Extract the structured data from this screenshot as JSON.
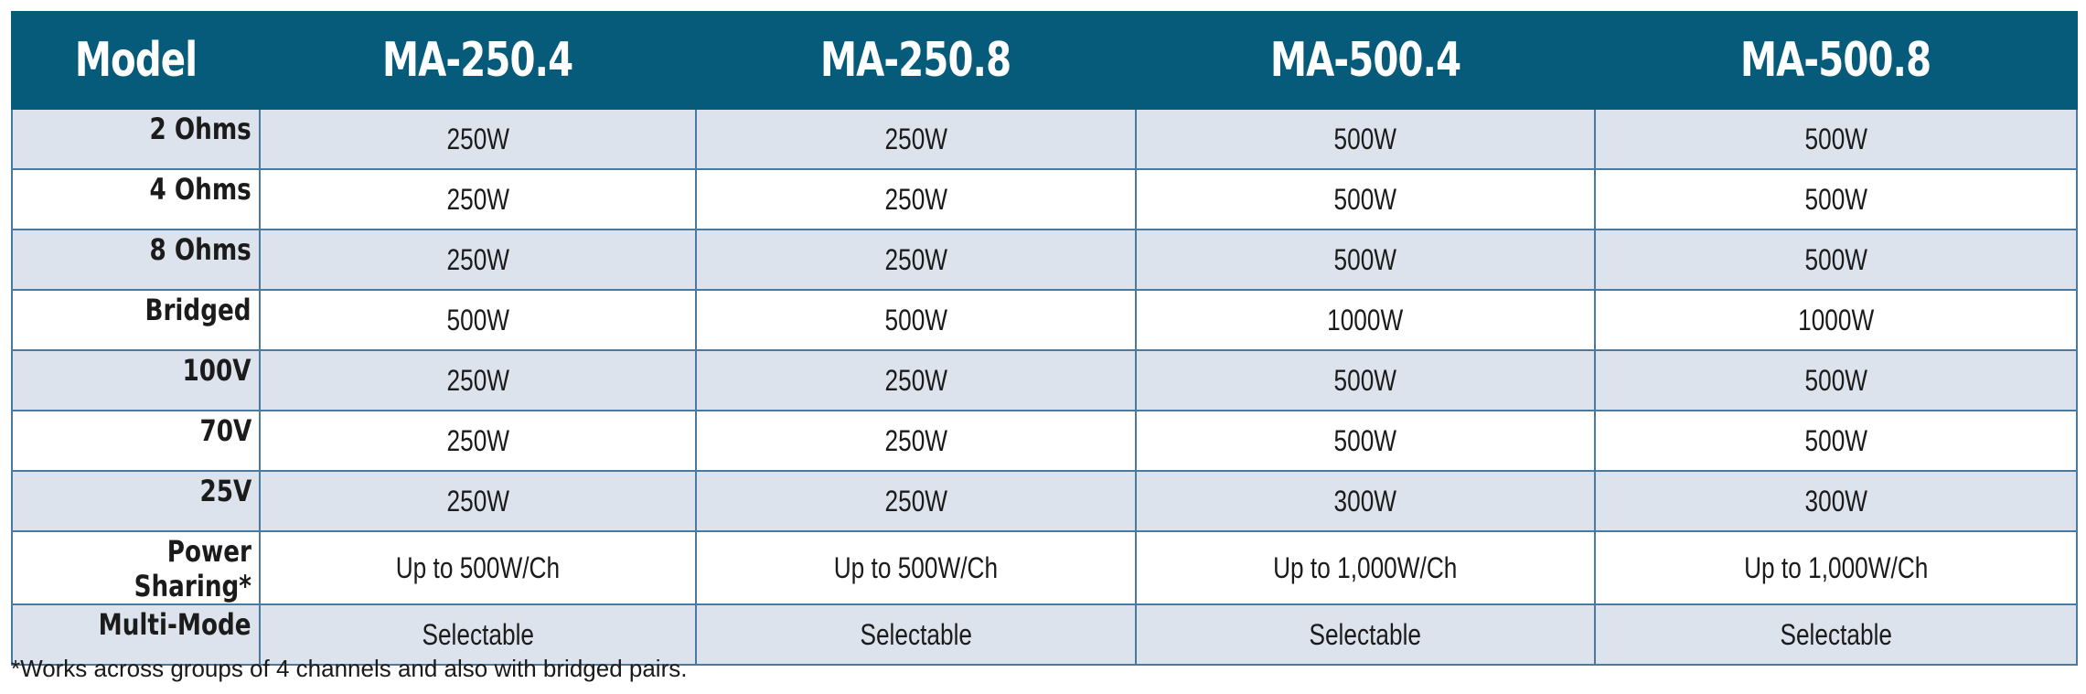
{
  "table": {
    "header": [
      "Model",
      "MA-250.4",
      "MA-250.8",
      "MA-500.4",
      "MA-500.8"
    ],
    "rows": [
      {
        "label": "2 Ohms",
        "values": [
          "250W",
          "250W",
          "500W",
          "500W"
        ]
      },
      {
        "label": "4 Ohms",
        "values": [
          "250W",
          "250W",
          "500W",
          "500W"
        ]
      },
      {
        "label": "8 Ohms",
        "values": [
          "250W",
          "250W",
          "500W",
          "500W"
        ]
      },
      {
        "label": "Bridged",
        "values": [
          "500W",
          "500W",
          "1000W",
          "1000W"
        ]
      },
      {
        "label": "100V",
        "values": [
          "250W",
          "250W",
          "500W",
          "500W"
        ]
      },
      {
        "label": "70V",
        "values": [
          "250W",
          "250W",
          "500W",
          "500W"
        ]
      },
      {
        "label": "25V",
        "values": [
          "250W",
          "250W",
          "300W",
          "300W"
        ]
      },
      {
        "label": "Power Sharing*",
        "values": [
          "Up to 500W/Ch",
          "Up to 500W/Ch",
          "Up to 1,000W/Ch",
          "Up to 1,000W/Ch"
        ]
      },
      {
        "label": "Multi-Mode",
        "values": [
          "Selectable",
          "Selectable",
          "Selectable",
          "Selectable"
        ]
      }
    ]
  },
  "footnote": "*Works across groups of 4 channels and also with bridged pairs.",
  "colors": {
    "header_bg": "#065a7a",
    "header_text": "#ffffff",
    "row_shade": "#dde3ec",
    "row_plain": "#ffffff",
    "grid_line": "#4a7aa0"
  }
}
